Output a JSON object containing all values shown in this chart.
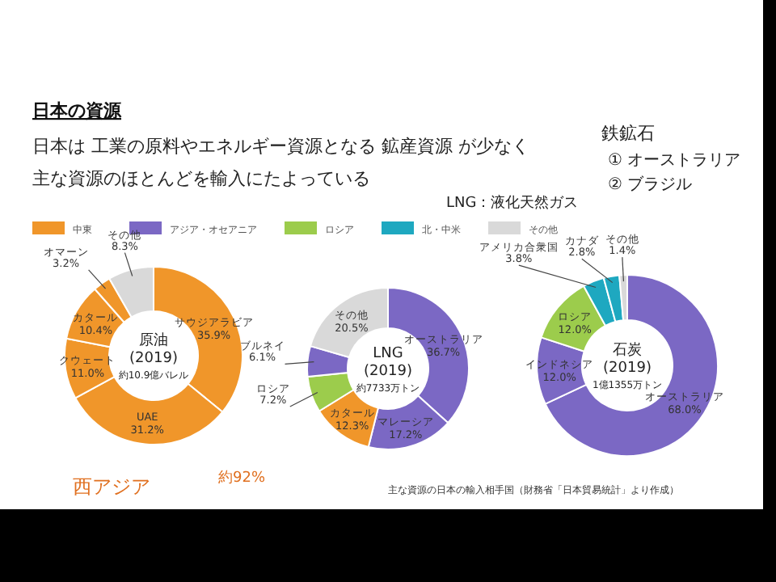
{
  "chart_data": [
    {
      "type": "other",
      "title": "日本の資源",
      "annotations": [
        "日本は 工業の原料やエネルギー資源となる 鉱産資源 が少なく",
        "主な資源のほとんどを輸入にたよっている",
        "鉄鉱石",
        "① オーストラリア",
        "② ブラジル",
        "LNG：液化天然ガス",
        "主な資源の日本の輸入相手国（財務省「日本貿易統計」より作成）"
      ],
      "categories": [
        "中東",
        "アジア・オセアニア",
        "ロシア",
        "北・中米",
        "その他"
      ],
      "colors": [
        "#f0962a",
        "#7b68c4",
        "#9ccc4c",
        "#1ea8c0",
        "#d9d9d9"
      ]
    },
    {
      "type": "donut",
      "title": "原油",
      "subtitle": "(2019)",
      "annotations": [
        "約10.9億バレル",
        "西アジア",
        "約92%"
      ],
      "categories": [
        "サウジアラビア",
        "UAE",
        "クウェート",
        "カタール",
        "オマーン",
        "その他"
      ],
      "values": [
        35.9,
        31.2,
        11.0,
        10.4,
        3.2,
        8.3
      ],
      "value_labels": [
        "35.9%",
        "31.2%",
        "11.0%",
        "10.4%",
        "3.2%",
        "8.3%"
      ],
      "colors": [
        "#f0962a",
        "#f0962a",
        "#f0962a",
        "#f0962a",
        "#f0962a",
        "#d9d9d9"
      ]
    },
    {
      "type": "donut",
      "title": "LNG",
      "subtitle": "(2019)",
      "annotations": [
        "約7733万トン"
      ],
      "categories": [
        "オーストラリア",
        "マレーシア",
        "カタール",
        "ロシア",
        "ブルネイ",
        "その他"
      ],
      "values": [
        36.7,
        17.2,
        12.3,
        7.2,
        6.1,
        20.5
      ],
      "value_labels": [
        "36.7%",
        "17.2%",
        "12.3%",
        "7.2%",
        "6.1%",
        "20.5%"
      ],
      "colors": [
        "#7b68c4",
        "#7b68c4",
        "#f0962a",
        "#9ccc4c",
        "#7b68c4",
        "#d9d9d9"
      ]
    },
    {
      "type": "donut",
      "title": "石炭",
      "subtitle": "(2019)",
      "annotations": [
        "1億1355万トン"
      ],
      "categories": [
        "オーストラリア",
        "インドネシア",
        "ロシア",
        "アメリカ合衆国",
        "カナダ",
        "その他"
      ],
      "values": [
        68.0,
        12.0,
        12.0,
        3.8,
        2.8,
        1.4
      ],
      "value_labels": [
        "68.0%",
        "12.0%",
        "12.0%",
        "3.8%",
        "2.8%",
        "1.4%"
      ],
      "colors": [
        "#7b68c4",
        "#7b68c4",
        "#9ccc4c",
        "#1ea8c0",
        "#1ea8c0",
        "#d9d9d9"
      ]
    }
  ]
}
